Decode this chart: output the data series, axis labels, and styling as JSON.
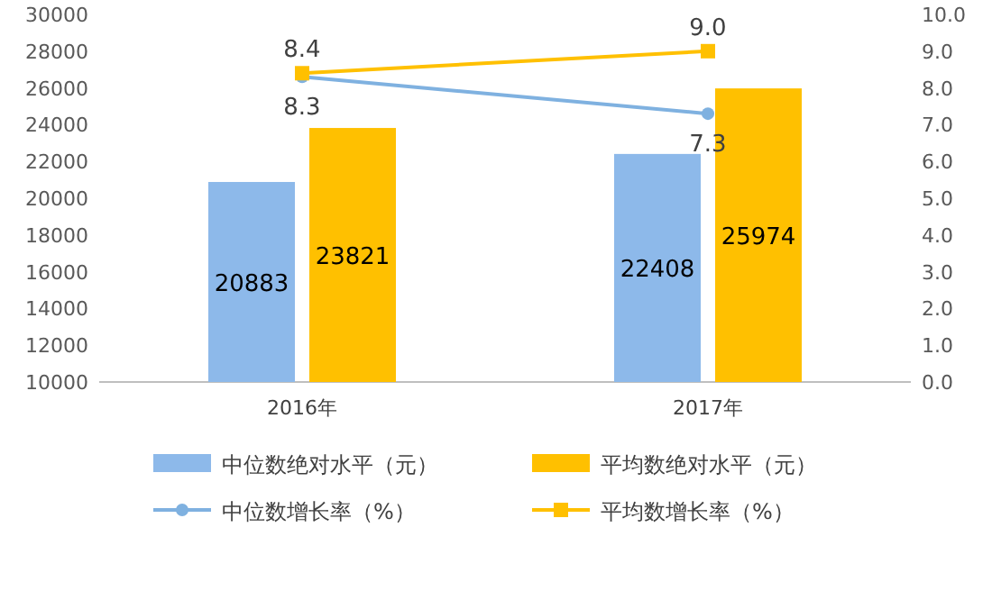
{
  "chart_data": {
    "type": "bar",
    "categories": [
      "2016年",
      "2017年"
    ],
    "series": [
      {
        "name": "中位数绝对水平（元）",
        "color": "#8db9ea",
        "values": [
          20883,
          22408
        ]
      },
      {
        "name": "平均数绝对水平（元）",
        "color": "#ffc000",
        "values": [
          23821,
          25974
        ]
      },
      {
        "name": "中位数增长率（%）",
        "color": "#7fb1e0",
        "type": "line",
        "axis": "y2",
        "marker": "circle",
        "values": [
          8.3,
          7.3
        ],
        "value_labels": [
          "8.3",
          "7.3"
        ]
      },
      {
        "name": "平均数增长率（%）",
        "color": "#ffc000",
        "type": "line",
        "axis": "y2",
        "marker": "square",
        "values": [
          8.4,
          9.0
        ],
        "value_labels": [
          "8.4",
          "9.0"
        ]
      }
    ],
    "ylim": [
      10000,
      30000
    ],
    "yticks": [
      10000,
      12000,
      14000,
      16000,
      18000,
      20000,
      22000,
      24000,
      26000,
      28000,
      30000
    ],
    "y2lim": [
      0,
      10
    ],
    "y2ticks": [
      {
        "value": 0,
        "label": "0.0"
      },
      {
        "value": 1,
        "label": "1.0"
      },
      {
        "value": 2,
        "label": "2.0"
      },
      {
        "value": 3,
        "label": "3.0"
      },
      {
        "value": 4,
        "label": "4.0"
      },
      {
        "value": 5,
        "label": "5.0"
      },
      {
        "value": 6,
        "label": "6.0"
      },
      {
        "value": 7,
        "label": "7.0"
      },
      {
        "value": 8,
        "label": "8.0"
      },
      {
        "value": 9,
        "label": "9.0"
      },
      {
        "value": 10,
        "label": "10.0"
      }
    ],
    "data_labels": true,
    "legend": "bottom"
  }
}
